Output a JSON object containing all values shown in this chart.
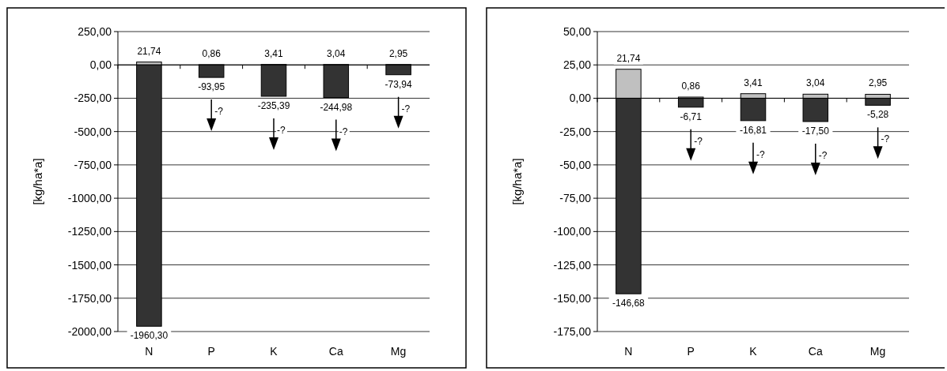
{
  "chart_data": [
    {
      "type": "bar",
      "stacked": true,
      "ylabel": "[kg/ha*a]",
      "categories": [
        "N",
        "P",
        "K",
        "Ca",
        "Mg"
      ],
      "series": [
        {
          "color": "#c0c0c0",
          "values": [
            21.74,
            0.86,
            3.41,
            3.04,
            2.95
          ],
          "value_labels": [
            "21,74",
            "0,86",
            "3,41",
            "3,04",
            "2,95"
          ]
        },
        {
          "color": "#333333",
          "values": [
            -1960.3,
            -93.95,
            -235.39,
            -244.98,
            -73.94
          ],
          "value_labels": [
            "-1960,30",
            "-93,95",
            "-235,39",
            "-244,98",
            "-73,94"
          ]
        }
      ],
      "ylim": [
        -2000,
        250
      ],
      "yticks": [
        {
          "value": 250,
          "label": "250,00"
        },
        {
          "value": 0,
          "label": "0,00"
        },
        {
          "value": -250,
          "label": "-250,00"
        },
        {
          "value": -500,
          "label": "-500,00"
        },
        {
          "value": -750,
          "label": "-750,00"
        },
        {
          "value": -1000,
          "label": "-1000,00"
        },
        {
          "value": -1250,
          "label": "-1250,00"
        },
        {
          "value": -1500,
          "label": "-1500,00"
        },
        {
          "value": -1750,
          "label": "-1750,00"
        },
        {
          "value": -2000,
          "label": "-2000,00"
        }
      ],
      "grid": "y",
      "annotations": [
        "-?",
        "-?",
        "-?",
        "-?"
      ]
    },
    {
      "type": "bar",
      "stacked": true,
      "ylabel": "[kg/ha*a]",
      "categories": [
        "N",
        "P",
        "K",
        "Ca",
        "Mg"
      ],
      "series": [
        {
          "color": "#c0c0c0",
          "values": [
            21.74,
            0.86,
            3.41,
            3.04,
            2.95
          ],
          "value_labels": [
            "21,74",
            "0,86",
            "3,41",
            "3,04",
            "2,95"
          ]
        },
        {
          "color": "#333333",
          "values": [
            -146.68,
            -6.71,
            -16.81,
            -17.5,
            -5.28
          ],
          "value_labels": [
            "-146,68",
            "-6,71",
            "-16,81",
            "-17,50",
            "-5,28"
          ]
        }
      ],
      "ylim": [
        -175,
        50
      ],
      "yticks": [
        {
          "value": 50,
          "label": "50,00"
        },
        {
          "value": 25,
          "label": "25,00"
        },
        {
          "value": 0,
          "label": "0,00"
        },
        {
          "value": -25,
          "label": "-25,00"
        },
        {
          "value": -50,
          "label": "-50,00"
        },
        {
          "value": -75,
          "label": "-75,00"
        },
        {
          "value": -100,
          "label": "-100,00"
        },
        {
          "value": -125,
          "label": "-125,00"
        },
        {
          "value": -150,
          "label": "-150,00"
        },
        {
          "value": -175,
          "label": "-175,00"
        }
      ],
      "grid": "y",
      "annotations": [
        "-?",
        "-?",
        "-?",
        "-?"
      ]
    }
  ]
}
